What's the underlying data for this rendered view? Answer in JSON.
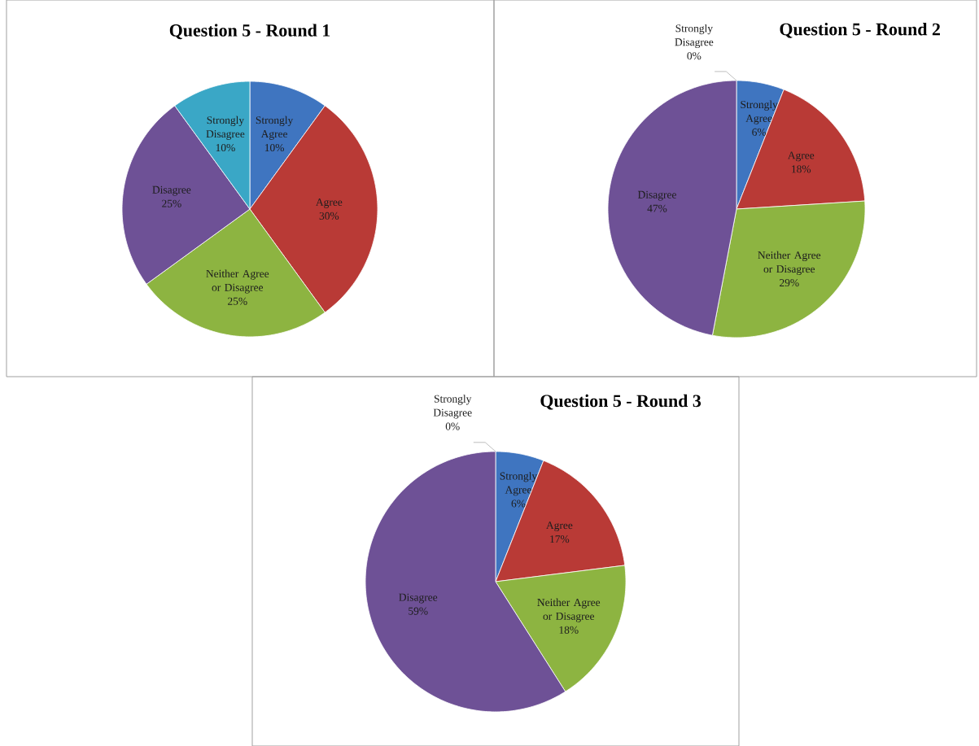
{
  "chart_data": [
    {
      "type": "pie",
      "title": "Question 5 - Round 1",
      "categories": [
        "Strongly Agree",
        "Agree",
        "Neither Agree or Disagree",
        "Disagree",
        "Strongly Disagree"
      ],
      "values": [
        10,
        30,
        25,
        25,
        10
      ],
      "colors": [
        "#3f75c0",
        "#b93a36",
        "#8db441",
        "#6e5196",
        "#3aa7c6"
      ],
      "value_labels": [
        "10%",
        "30%",
        "25%",
        "25%",
        "10%"
      ]
    },
    {
      "type": "pie",
      "title": "Question 5 - Round 2",
      "categories": [
        "Strongly Agree",
        "Agree",
        "Neither Agree or Disagree",
        "Disagree",
        "Strongly Disagree"
      ],
      "values": [
        6,
        18,
        29,
        47,
        0
      ],
      "colors": [
        "#3f75c0",
        "#b93a36",
        "#8db441",
        "#6e5196",
        "#3aa7c6"
      ],
      "value_labels": [
        "6%",
        "18%",
        "29%",
        "47%",
        "0%"
      ]
    },
    {
      "type": "pie",
      "title": "Question 5 - Round 3",
      "categories": [
        "Strongly Agree",
        "Agree",
        "Neither Agree or Disagree",
        "Disagree",
        "Strongly Disagree"
      ],
      "values": [
        6,
        17,
        18,
        59,
        0
      ],
      "colors": [
        "#3f75c0",
        "#b93a36",
        "#8db441",
        "#6e5196",
        "#3aa7c6"
      ],
      "value_labels": [
        "6%",
        "17%",
        "18%",
        "59%",
        "0%"
      ]
    }
  ]
}
